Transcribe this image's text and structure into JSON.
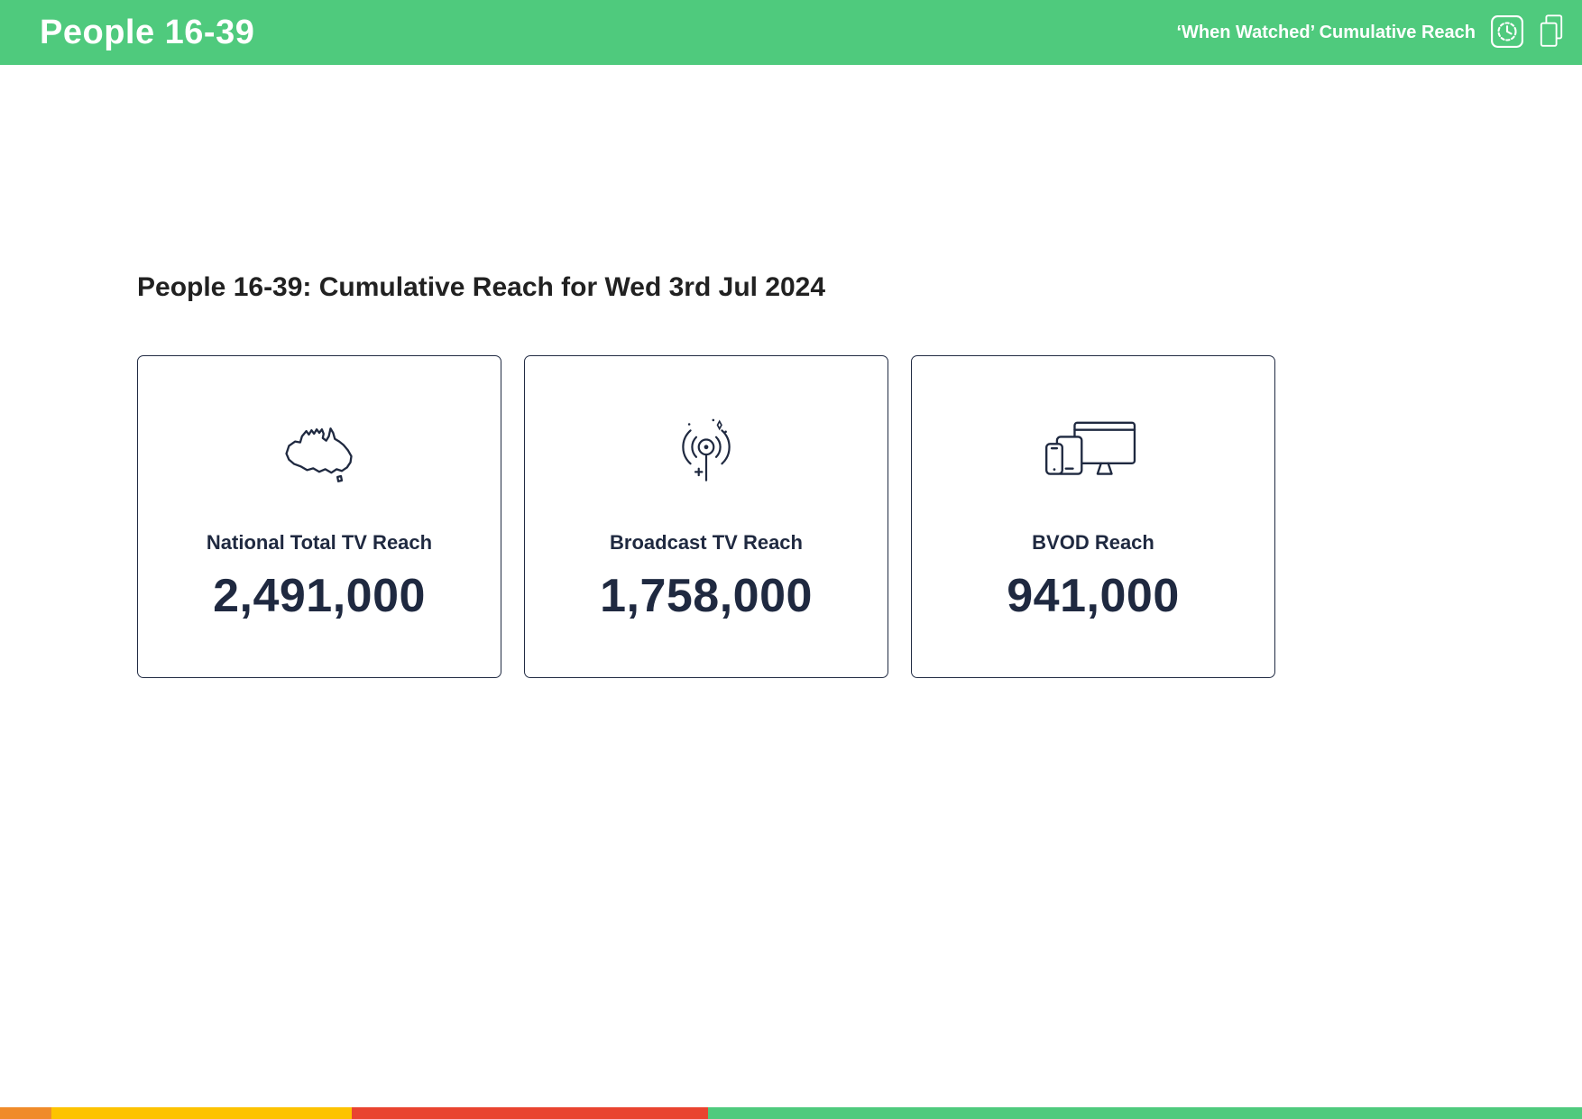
{
  "header": {
    "title": "People 16-39",
    "subtitle": "‘When Watched’ Cumulative Reach",
    "icons": [
      "clock-history-icon",
      "copy-icon"
    ],
    "colors": {
      "bg": "#4fca7d",
      "text": "#ffffff"
    }
  },
  "main": {
    "title": "People 16-39: Cumulative Reach for Wed 3rd Jul 2024",
    "cards": [
      {
        "icon": "australia-map-icon",
        "label": "National Total TV Reach",
        "value": "2,491,000"
      },
      {
        "icon": "broadcast-antenna-icon",
        "label": "Broadcast TV Reach",
        "value": "1,758,000"
      },
      {
        "icon": "devices-icon",
        "label": "BVOD Reach",
        "value": "941,000"
      }
    ],
    "colors": {
      "card_border": "#222c44",
      "card_text": "#1f2940",
      "title_text": "#212121"
    }
  },
  "footer": {
    "segments": [
      {
        "name": "orange",
        "color": "#f08b2a",
        "width_pct": 3.25
      },
      {
        "name": "yellow",
        "color": "#fdc300",
        "width_pct": 19.0
      },
      {
        "name": "red",
        "color": "#e94430",
        "width_pct": 22.5
      },
      {
        "name": "green",
        "color": "#4fca7d",
        "width_pct": 55.25
      }
    ]
  }
}
